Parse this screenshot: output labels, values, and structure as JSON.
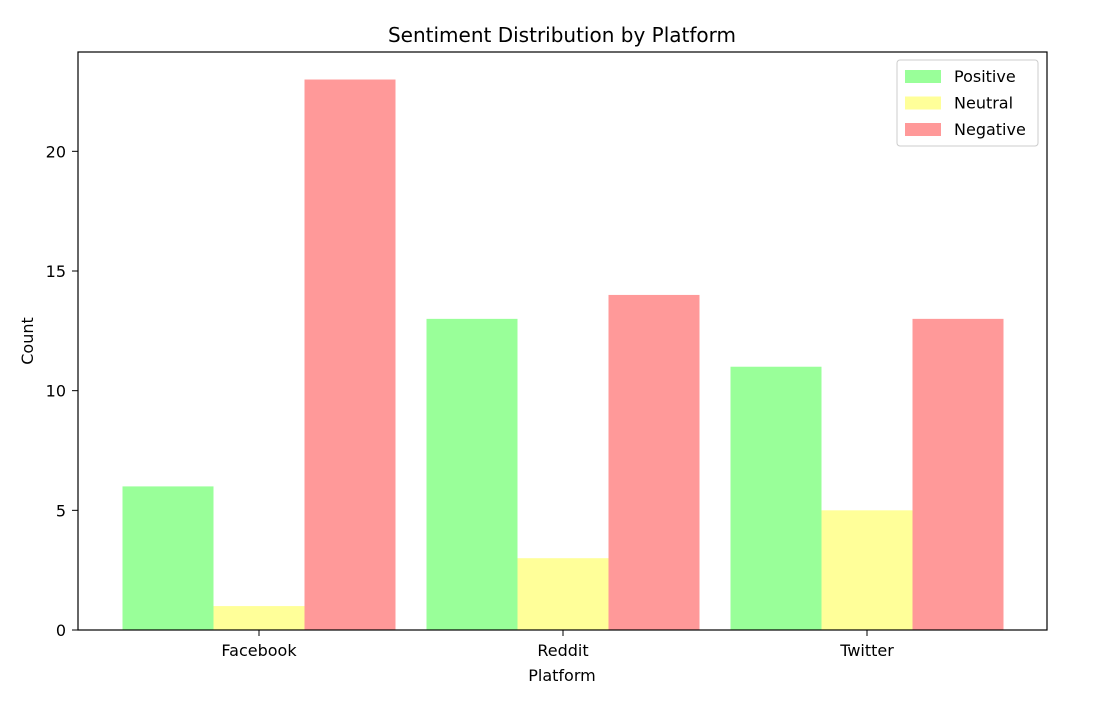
{
  "chart_data": {
    "type": "bar",
    "title": "Sentiment Distribution by Platform",
    "xlabel": "Platform",
    "ylabel": "Count",
    "categories": [
      "Facebook",
      "Reddit",
      "Twitter"
    ],
    "series": [
      {
        "name": "Positive",
        "color": "#99ff99",
        "values": [
          6,
          13,
          11
        ]
      },
      {
        "name": "Neutral",
        "color": "#ffff99",
        "values": [
          1,
          3,
          5
        ]
      },
      {
        "name": "Negative",
        "color": "#ff9999",
        "values": [
          23,
          14,
          13
        ]
      }
    ],
    "ylim": [
      0,
      24.15
    ],
    "yticks": [
      0,
      5,
      10,
      15,
      20
    ],
    "ytick_labels": [
      "0",
      "5",
      "10",
      "15",
      "20"
    ],
    "grid": false,
    "legend_position": "top-right"
  }
}
